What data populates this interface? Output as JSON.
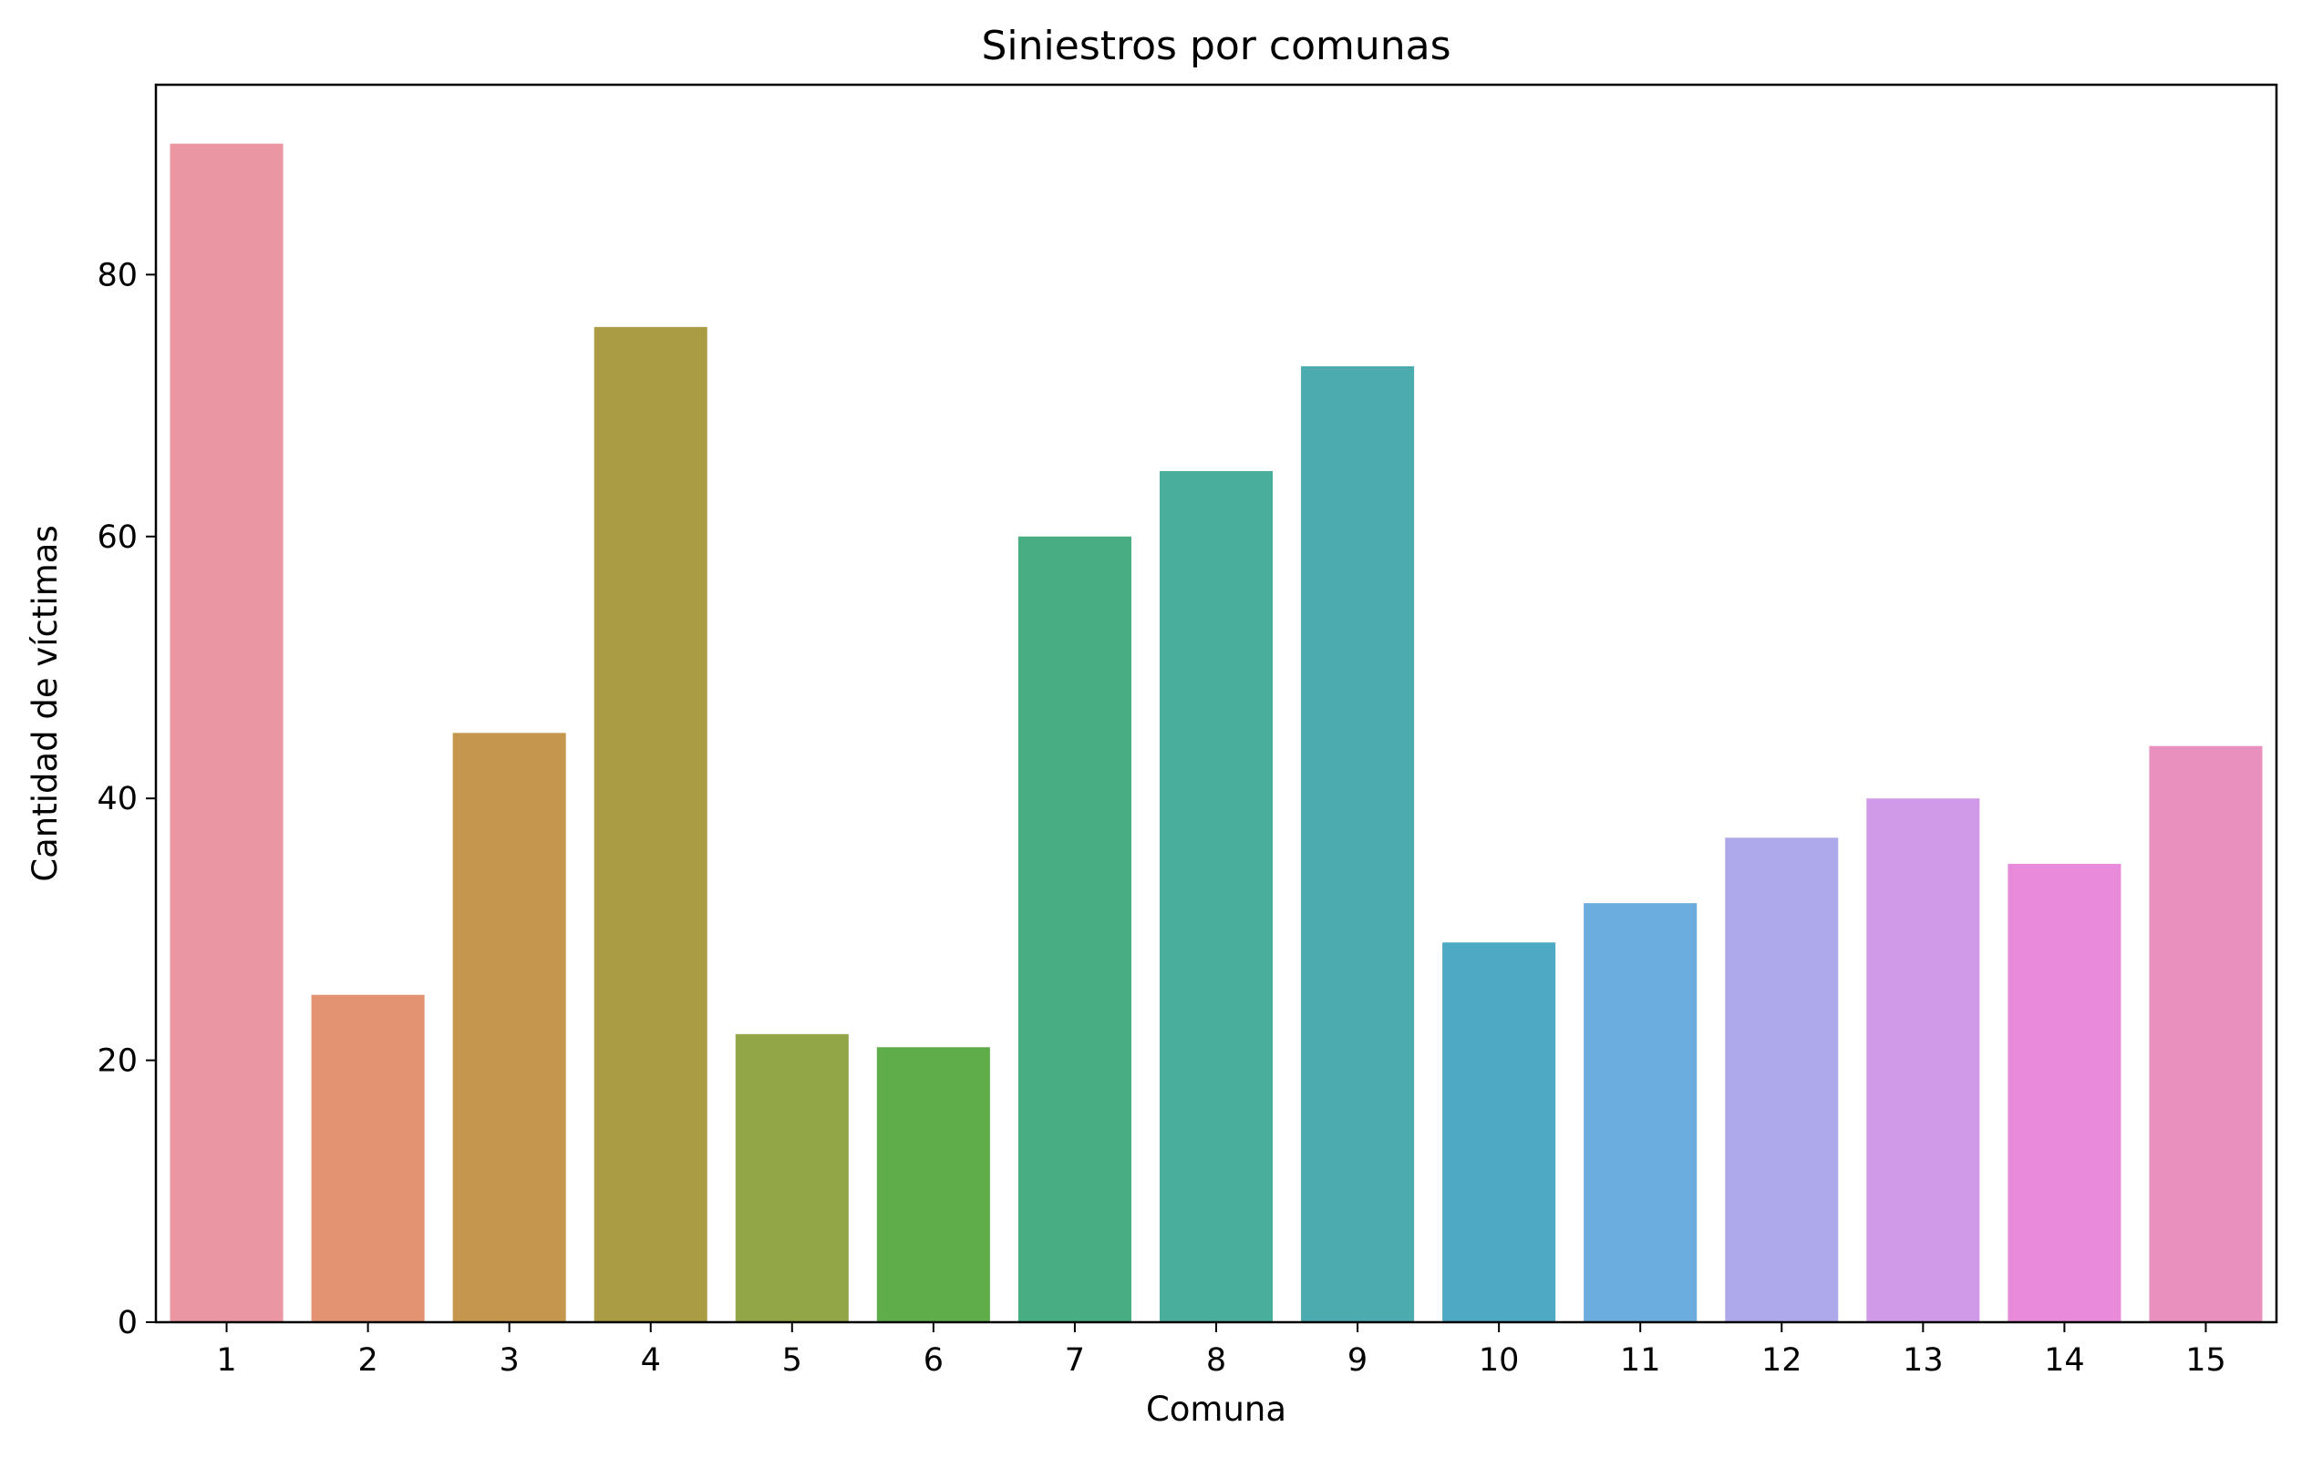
{
  "chart_data": {
    "type": "bar",
    "title": "Siniestros por comunas",
    "xlabel": "Comuna",
    "ylabel": "Cantidad de víctimas",
    "categories": [
      "1",
      "2",
      "3",
      "4",
      "5",
      "6",
      "7",
      "8",
      "9",
      "10",
      "11",
      "12",
      "13",
      "14",
      "15"
    ],
    "values": [
      90,
      25,
      45,
      76,
      22,
      21,
      60,
      65,
      73,
      29,
      32,
      37,
      40,
      35,
      44
    ],
    "colors": [
      "#ea96a3",
      "#e39371",
      "#c5974e",
      "#aa9c45",
      "#92a547",
      "#5fad4a",
      "#48ae82",
      "#4aae9d",
      "#4cabaf",
      "#4ea9c4",
      "#6badde",
      "#aea9e9",
      "#d19ae8",
      "#e88bdb",
      "#e890be"
    ],
    "ylim": [
      0,
      94.5
    ],
    "yticks": [
      0,
      20,
      40,
      60,
      80
    ],
    "grid": false,
    "legend": "none"
  }
}
